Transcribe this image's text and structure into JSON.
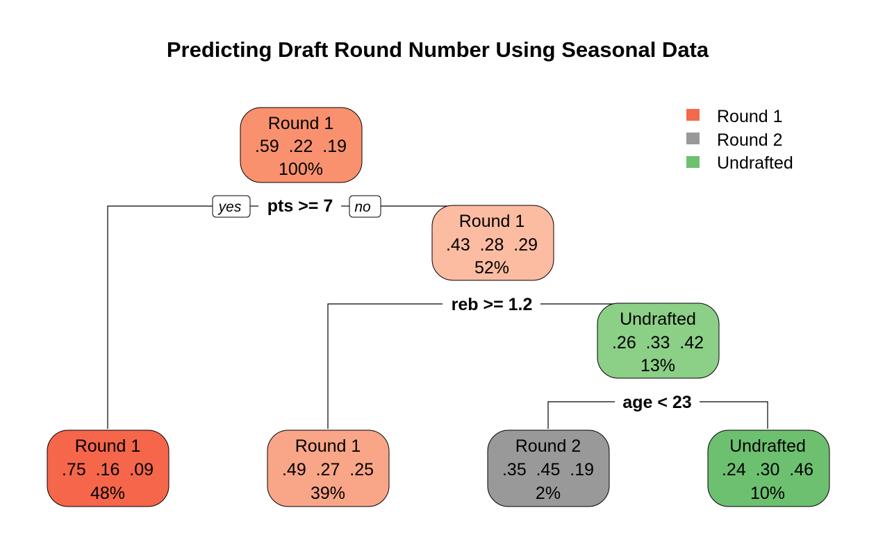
{
  "title": "Predicting Draft Round Number Using Seasonal Data",
  "legend": [
    {
      "label": "Round 1",
      "color": "#f4694a"
    },
    {
      "label": "Round 2",
      "color": "#999999"
    },
    {
      "label": "Undrafted",
      "color": "#6cc070"
    }
  ],
  "nodes": {
    "root": {
      "label": "Round 1",
      "probs": ".59  .22  .19",
      "pct": "100%",
      "color": "#f9916f"
    },
    "n_no": {
      "label": "Round 1",
      "probs": ".43  .28  .29",
      "pct": "52%",
      "color": "#fbbca2"
    },
    "n_und1": {
      "label": "Undrafted",
      "probs": ".26  .33  .42",
      "pct": "13%",
      "color": "#8ccf87"
    },
    "leaf1": {
      "label": "Round 1",
      "probs": ".75  .16  .09",
      "pct": "48%",
      "color": "#f5664a"
    },
    "leaf2": {
      "label": "Round 1",
      "probs": ".49  .27  .25",
      "pct": "39%",
      "color": "#f9a587"
    },
    "leaf3": {
      "label": "Round 2",
      "probs": ".35  .45  .19",
      "pct": "2%",
      "color": "#999999"
    },
    "leaf4": {
      "label": "Undrafted",
      "probs": ".24  .30  .46",
      "pct": "10%",
      "color": "#6cc070"
    }
  },
  "splits": {
    "s1": {
      "rule": "pts >= 7",
      "yes": "yes",
      "no": "no"
    },
    "s2": {
      "rule": "reb >= 1.2"
    },
    "s3": {
      "rule": "age < 23"
    }
  }
}
